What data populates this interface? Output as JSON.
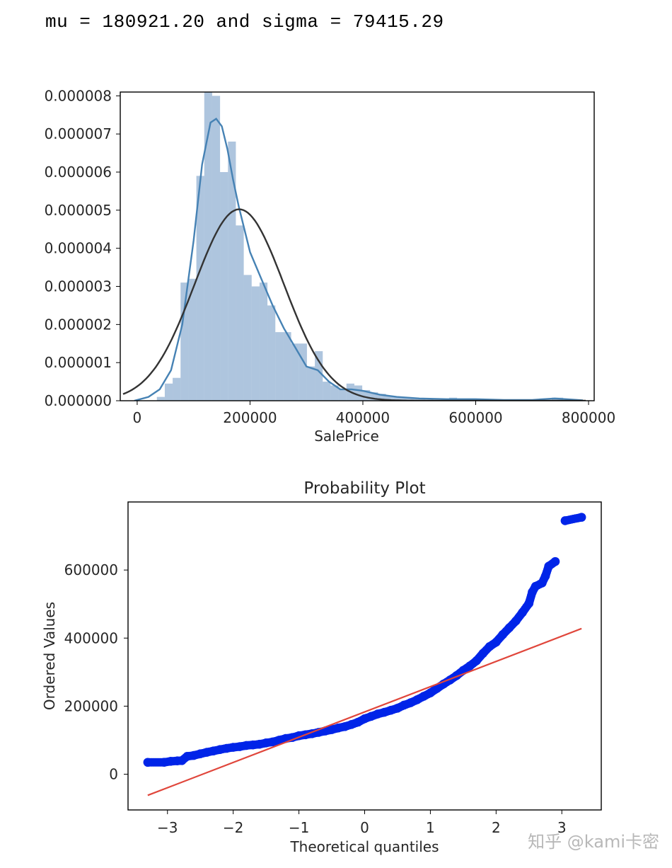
{
  "header": {
    "stat_text": "mu = 180921.20 and sigma = 79415.29"
  },
  "watermark": "知乎 @kami卡密",
  "chart_data": [
    {
      "type": "histogram",
      "title": "",
      "xlabel": "SalePrice",
      "ylabel": "",
      "xlim": [
        -30000,
        810000
      ],
      "ylim": [
        0,
        8.1e-06
      ],
      "xticks": [
        0,
        200000,
        400000,
        600000,
        800000
      ],
      "xtick_labels": [
        "0",
        "200000",
        "400000",
        "600000",
        "800000"
      ],
      "yticks": [
        0,
        1e-06,
        2e-06,
        3e-06,
        4e-06,
        5e-06,
        6e-06,
        7e-06,
        8e-06
      ],
      "ytick_labels": [
        "0.000000",
        "0.000001",
        "0.000002",
        "0.000003",
        "0.000004",
        "0.000005",
        "0.000006",
        "0.000007",
        "0.000008"
      ],
      "colors": {
        "hist": "#4b7fb5",
        "kde": "#4682b4",
        "normal": "#333333"
      },
      "bins": [
        {
          "x0": 34900,
          "x1": 48900,
          "density": 1e-07
        },
        {
          "x0": 48900,
          "x1": 62900,
          "density": 4.5e-07
        },
        {
          "x0": 62900,
          "x1": 76900,
          "density": 6e-07
        },
        {
          "x0": 76900,
          "x1": 90900,
          "density": 3.1e-06
        },
        {
          "x0": 90900,
          "x1": 104900,
          "density": 3.2e-06
        },
        {
          "x0": 104900,
          "x1": 118900,
          "density": 5.9e-06
        },
        {
          "x0": 118900,
          "x1": 132900,
          "density": 8.2e-06
        },
        {
          "x0": 132900,
          "x1": 146900,
          "density": 8e-06
        },
        {
          "x0": 146900,
          "x1": 160900,
          "density": 6e-06
        },
        {
          "x0": 160900,
          "x1": 174900,
          "density": 6.8e-06
        },
        {
          "x0": 174900,
          "x1": 188900,
          "density": 4.6e-06
        },
        {
          "x0": 188900,
          "x1": 202900,
          "density": 3.3e-06
        },
        {
          "x0": 202900,
          "x1": 216900,
          "density": 3e-06
        },
        {
          "x0": 216900,
          "x1": 230900,
          "density": 3.1e-06
        },
        {
          "x0": 230900,
          "x1": 244900,
          "density": 2.5e-06
        },
        {
          "x0": 244900,
          "x1": 258900,
          "density": 1.8e-06
        },
        {
          "x0": 258900,
          "x1": 272900,
          "density": 1.8e-06
        },
        {
          "x0": 272900,
          "x1": 286900,
          "density": 1.5e-06
        },
        {
          "x0": 286900,
          "x1": 300900,
          "density": 1.5e-06
        },
        {
          "x0": 300900,
          "x1": 314900,
          "density": 9e-07
        },
        {
          "x0": 314900,
          "x1": 328900,
          "density": 1.3e-06
        },
        {
          "x0": 328900,
          "x1": 342900,
          "density": 5e-07
        },
        {
          "x0": 342900,
          "x1": 356900,
          "density": 4e-07
        },
        {
          "x0": 356900,
          "x1": 370900,
          "density": 3e-07
        },
        {
          "x0": 370900,
          "x1": 384900,
          "density": 4.5e-07
        },
        {
          "x0": 384900,
          "x1": 398900,
          "density": 4e-07
        },
        {
          "x0": 398900,
          "x1": 412900,
          "density": 2.8e-07
        },
        {
          "x0": 412900,
          "x1": 426900,
          "density": 2.2e-07
        },
        {
          "x0": 426900,
          "x1": 440900,
          "density": 1.8e-07
        },
        {
          "x0": 440900,
          "x1": 454900,
          "density": 1.2e-07
        },
        {
          "x0": 454900,
          "x1": 468900,
          "density": 1e-07
        },
        {
          "x0": 468900,
          "x1": 482900,
          "density": 8e-08
        },
        {
          "x0": 482900,
          "x1": 496900,
          "density": 6e-08
        },
        {
          "x0": 496900,
          "x1": 510900,
          "density": 4e-08
        },
        {
          "x0": 510900,
          "x1": 524900,
          "density": 3e-08
        },
        {
          "x0": 524900,
          "x1": 538900,
          "density": 2e-08
        },
        {
          "x0": 538900,
          "x1": 552900,
          "density": 4e-08
        },
        {
          "x0": 552900,
          "x1": 566900,
          "density": 8e-08
        },
        {
          "x0": 566900,
          "x1": 580900,
          "density": 2e-08
        },
        {
          "x0": 580900,
          "x1": 594900,
          "density": 2e-08
        },
        {
          "x0": 594900,
          "x1": 608900,
          "density": 2e-08
        },
        {
          "x0": 608900,
          "x1": 622900,
          "density": 4e-08
        },
        {
          "x0": 734900,
          "x1": 748900,
          "density": 8e-08
        },
        {
          "x0": 748900,
          "x1": 755000,
          "density": 8e-08
        }
      ],
      "kde_points": [
        [
          -5000,
          0.0
        ],
        [
          20000,
          1e-07
        ],
        [
          40000,
          3e-07
        ],
        [
          60000,
          8e-07
        ],
        [
          80000,
          2e-06
        ],
        [
          100000,
          4.2e-06
        ],
        [
          115000,
          6.2e-06
        ],
        [
          130000,
          7.3e-06
        ],
        [
          140000,
          7.4e-06
        ],
        [
          150000,
          7.2e-06
        ],
        [
          160000,
          6.6e-06
        ],
        [
          170000,
          5.8e-06
        ],
        [
          180000,
          5.1e-06
        ],
        [
          190000,
          4.5e-06
        ],
        [
          200000,
          3.9e-06
        ],
        [
          220000,
          3.2e-06
        ],
        [
          240000,
          2.5e-06
        ],
        [
          260000,
          1.9e-06
        ],
        [
          280000,
          1.4e-06
        ],
        [
          300000,
          9e-07
        ],
        [
          320000,
          8e-07
        ],
        [
          340000,
          5e-07
        ],
        [
          360000,
          3e-07
        ],
        [
          380000,
          3e-07
        ],
        [
          400000,
          2.6e-07
        ],
        [
          430000,
          1.6e-07
        ],
        [
          460000,
          1e-07
        ],
        [
          500000,
          6e-08
        ],
        [
          550000,
          4e-08
        ],
        [
          600000,
          4e-08
        ],
        [
          650000,
          2e-08
        ],
        [
          700000,
          2e-08
        ],
        [
          740000,
          6e-08
        ],
        [
          760000,
          4e-08
        ],
        [
          790000,
          1e-08
        ]
      ],
      "normal_fit": {
        "mu": 180921.2,
        "sigma": 79415.29,
        "x_range": [
          -25000,
          795000
        ]
      }
    },
    {
      "type": "scatter",
      "title": "Probability Plot",
      "xlabel": "Theoretical quantiles",
      "ylabel": "Ordered Values",
      "xlim": [
        -3.6,
        3.6
      ],
      "ylim": [
        -105000,
        800000
      ],
      "xticks": [
        -3,
        -2,
        -1,
        0,
        1,
        2,
        3
      ],
      "xtick_labels": [
        "−3",
        "−2",
        "−1",
        "0",
        "1",
        "2",
        "3"
      ],
      "yticks": [
        0,
        200000,
        400000,
        600000
      ],
      "ytick_labels": [
        "0",
        "200000",
        "400000",
        "600000"
      ],
      "colors": {
        "points": "#0024e8",
        "fit_line": "#e0463b"
      },
      "fit_line": {
        "x": [
          -3.3,
          3.3
        ],
        "y": [
          -62000,
          428000
        ]
      },
      "points": [
        [
          -3.3,
          34900
        ],
        [
          -3.05,
          35000
        ],
        [
          -2.95,
          37900
        ],
        [
          -2.85,
          39300
        ],
        [
          -2.78,
          40000
        ],
        [
          -2.7,
          52500
        ],
        [
          -2.6,
          55000
        ],
        [
          -2.5,
          60000
        ],
        [
          -2.4,
          64500
        ],
        [
          -2.3,
          68400
        ],
        [
          -2.2,
          72500
        ],
        [
          -2.1,
          76000
        ],
        [
          -2.0,
          79000
        ],
        [
          -1.9,
          81000
        ],
        [
          -1.8,
          84500
        ],
        [
          -1.7,
          86000
        ],
        [
          -1.6,
          88000
        ],
        [
          -1.5,
          92000
        ],
        [
          -1.4,
          95000
        ],
        [
          -1.3,
          100000
        ],
        [
          -1.2,
          105000
        ],
        [
          -1.1,
          108000
        ],
        [
          -1.0,
          113000
        ],
        [
          -0.9,
          116000
        ],
        [
          -0.8,
          119000
        ],
        [
          -0.7,
          123000
        ],
        [
          -0.6,
          127000
        ],
        [
          -0.5,
          131000
        ],
        [
          -0.4,
          136000
        ],
        [
          -0.3,
          140000
        ],
        [
          -0.2,
          146000
        ],
        [
          -0.1,
          153000
        ],
        [
          0.0,
          163000
        ],
        [
          0.1,
          170000
        ],
        [
          0.2,
          177000
        ],
        [
          0.3,
          182000
        ],
        [
          0.4,
          188000
        ],
        [
          0.5,
          194000
        ],
        [
          0.6,
          203000
        ],
        [
          0.7,
          210000
        ],
        [
          0.8,
          219000
        ],
        [
          0.9,
          229000
        ],
        [
          1.0,
          239000
        ],
        [
          1.1,
          252000
        ],
        [
          1.2,
          265000
        ],
        [
          1.3,
          277000
        ],
        [
          1.4,
          290000
        ],
        [
          1.5,
          305000
        ],
        [
          1.6,
          318000
        ],
        [
          1.7,
          333000
        ],
        [
          1.8,
          355000
        ],
        [
          1.9,
          375000
        ],
        [
          2.0,
          388000
        ],
        [
          2.1,
          410000
        ],
        [
          2.2,
          430000
        ],
        [
          2.3,
          450000
        ],
        [
          2.4,
          475000
        ],
        [
          2.5,
          502000
        ],
        [
          2.55,
          535000
        ],
        [
          2.6,
          552000
        ],
        [
          2.7,
          562000
        ],
        [
          2.75,
          582000
        ],
        [
          2.8,
          611000
        ],
        [
          2.9,
          625000
        ],
        [
          3.05,
          745000
        ],
        [
          3.3,
          755000
        ]
      ]
    }
  ]
}
